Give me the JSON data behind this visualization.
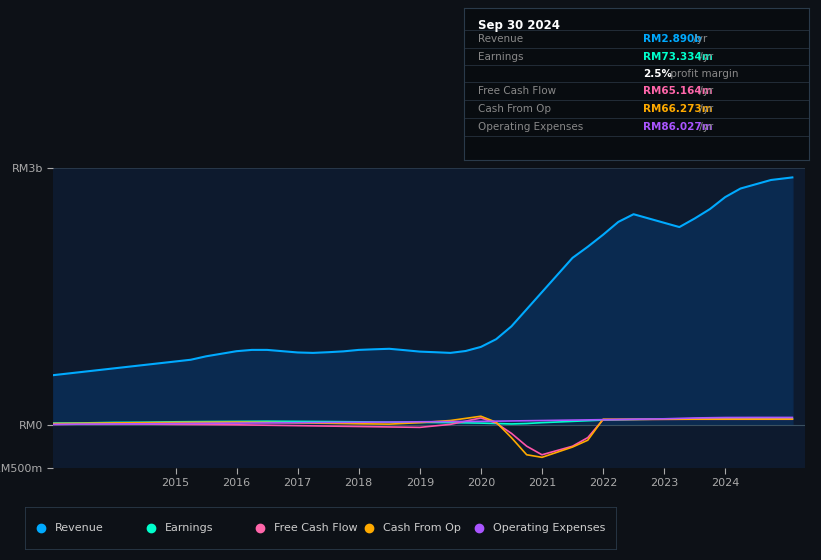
{
  "bg_color": "#0d1117",
  "plot_bg_color": "#0d1a2e",
  "ylim": [
    -500000000,
    3000000000
  ],
  "yticks": [
    -500000000,
    0,
    3000000000
  ],
  "ytick_labels": [
    "-RM500m",
    "RM0",
    "RM3b"
  ],
  "xlim_start": 2013.0,
  "xlim_end": 2025.3,
  "xticks": [
    2015,
    2016,
    2017,
    2018,
    2019,
    2020,
    2021,
    2022,
    2023,
    2024
  ],
  "legend_items": [
    {
      "label": "Revenue",
      "color": "#00aaff"
    },
    {
      "label": "Earnings",
      "color": "#00ffcc"
    },
    {
      "label": "Free Cash Flow",
      "color": "#ff66aa"
    },
    {
      "label": "Cash From Op",
      "color": "#ffaa00"
    },
    {
      "label": "Operating Expenses",
      "color": "#aa55ff"
    }
  ],
  "info_box": {
    "title": "Sep 30 2024",
    "rows": [
      {
        "label": "Revenue",
        "value": "RM2.890b",
        "unit": " /yr",
        "value_color": "#00aaff"
      },
      {
        "label": "Earnings",
        "value": "RM73.334m",
        "unit": " /yr",
        "value_color": "#00ffcc"
      },
      {
        "label": "",
        "value": "2.5%",
        "unit": " profit margin",
        "value_color": "#ffffff"
      },
      {
        "label": "Free Cash Flow",
        "value": "RM65.164m",
        "unit": " /yr",
        "value_color": "#ff66aa"
      },
      {
        "label": "Cash From Op",
        "value": "RM66.273m",
        "unit": " /yr",
        "value_color": "#ffaa00"
      },
      {
        "label": "Operating Expenses",
        "value": "RM86.027m",
        "unit": " /yr",
        "value_color": "#aa55ff"
      }
    ]
  },
  "revenue": {
    "color": "#00aaff",
    "fill_color": "#0a2a50",
    "x": [
      2013.0,
      2013.25,
      2013.5,
      2013.75,
      2014.0,
      2014.25,
      2014.5,
      2014.75,
      2015.0,
      2015.25,
      2015.5,
      2015.75,
      2016.0,
      2016.25,
      2016.5,
      2016.75,
      2017.0,
      2017.25,
      2017.5,
      2017.75,
      2018.0,
      2018.25,
      2018.5,
      2018.75,
      2019.0,
      2019.25,
      2019.5,
      2019.75,
      2020.0,
      2020.25,
      2020.5,
      2020.75,
      2021.0,
      2021.25,
      2021.5,
      2021.75,
      2022.0,
      2022.25,
      2022.5,
      2022.75,
      2023.0,
      2023.25,
      2023.5,
      2023.75,
      2024.0,
      2024.25,
      2024.5,
      2024.75,
      2025.1
    ],
    "y": [
      580000000,
      600000000,
      620000000,
      640000000,
      660000000,
      680000000,
      700000000,
      720000000,
      740000000,
      760000000,
      800000000,
      830000000,
      860000000,
      875000000,
      875000000,
      860000000,
      845000000,
      840000000,
      848000000,
      858000000,
      875000000,
      882000000,
      888000000,
      872000000,
      855000000,
      848000000,
      840000000,
      862000000,
      910000000,
      1000000000,
      1150000000,
      1350000000,
      1550000000,
      1750000000,
      1950000000,
      2080000000,
      2220000000,
      2370000000,
      2460000000,
      2410000000,
      2360000000,
      2310000000,
      2410000000,
      2520000000,
      2660000000,
      2760000000,
      2810000000,
      2860000000,
      2890000000
    ]
  },
  "earnings": {
    "color": "#00ffcc",
    "x": [
      2013.0,
      2013.5,
      2014.0,
      2014.5,
      2015.0,
      2015.5,
      2016.0,
      2016.5,
      2017.0,
      2017.5,
      2018.0,
      2018.5,
      2019.0,
      2019.5,
      2020.0,
      2020.25,
      2020.5,
      2020.75,
      2021.0,
      2021.5,
      2022.0,
      2022.5,
      2023.0,
      2023.5,
      2024.0,
      2024.5,
      2025.1
    ],
    "y": [
      20000000,
      22000000,
      28000000,
      30000000,
      35000000,
      38000000,
      40000000,
      42000000,
      40000000,
      38000000,
      35000000,
      30000000,
      28000000,
      25000000,
      20000000,
      15000000,
      10000000,
      15000000,
      25000000,
      40000000,
      55000000,
      62000000,
      68000000,
      70000000,
      73000000,
      73200000,
      73334000
    ]
  },
  "free_cash_flow": {
    "color": "#ff55aa",
    "x": [
      2013.0,
      2013.5,
      2014.0,
      2014.5,
      2015.0,
      2015.5,
      2016.0,
      2016.5,
      2017.0,
      2017.5,
      2018.0,
      2018.5,
      2019.0,
      2019.5,
      2020.0,
      2020.25,
      2020.5,
      2020.75,
      2021.0,
      2021.25,
      2021.5,
      2021.75,
      2022.0,
      2022.5,
      2023.0,
      2023.5,
      2024.0,
      2024.5,
      2025.1
    ],
    "y": [
      5000000,
      8000000,
      10000000,
      8000000,
      5000000,
      3000000,
      0,
      -5000000,
      -10000000,
      -15000000,
      -20000000,
      -25000000,
      -30000000,
      5000000,
      80000000,
      20000000,
      -100000000,
      -250000000,
      -350000000,
      -300000000,
      -250000000,
      -150000000,
      60000000,
      62000000,
      64000000,
      65000000,
      65000000,
      65100000,
      65164000
    ]
  },
  "cash_from_op": {
    "color": "#ffaa00",
    "x": [
      2013.0,
      2013.5,
      2014.0,
      2014.5,
      2015.0,
      2015.5,
      2016.0,
      2016.5,
      2017.0,
      2017.5,
      2018.0,
      2018.5,
      2019.0,
      2019.5,
      2020.0,
      2020.25,
      2020.5,
      2020.75,
      2021.0,
      2021.25,
      2021.5,
      2021.75,
      2022.0,
      2022.5,
      2023.0,
      2023.5,
      2024.0,
      2024.5,
      2025.1
    ],
    "y": [
      15000000,
      18000000,
      22000000,
      25000000,
      28000000,
      30000000,
      32000000,
      28000000,
      22000000,
      18000000,
      12000000,
      8000000,
      25000000,
      50000000,
      100000000,
      30000000,
      -150000000,
      -350000000,
      -380000000,
      -320000000,
      -260000000,
      -180000000,
      65000000,
      64000000,
      65000000,
      66000000,
      66200000,
      66260000,
      66273000
    ]
  },
  "operating_expenses": {
    "color": "#aa55ff",
    "x": [
      2013.0,
      2013.5,
      2014.0,
      2014.5,
      2015.0,
      2015.5,
      2016.0,
      2016.5,
      2017.0,
      2017.5,
      2018.0,
      2018.5,
      2019.0,
      2019.5,
      2020.0,
      2020.5,
      2021.0,
      2021.5,
      2022.0,
      2022.5,
      2023.0,
      2023.5,
      2024.0,
      2024.5,
      2025.1
    ],
    "y": [
      5000000,
      8000000,
      10000000,
      12000000,
      15000000,
      18000000,
      20000000,
      22000000,
      25000000,
      28000000,
      30000000,
      32000000,
      35000000,
      38000000,
      40000000,
      45000000,
      50000000,
      55000000,
      60000000,
      65000000,
      70000000,
      80000000,
      85000000,
      86000000,
      86027000
    ]
  }
}
